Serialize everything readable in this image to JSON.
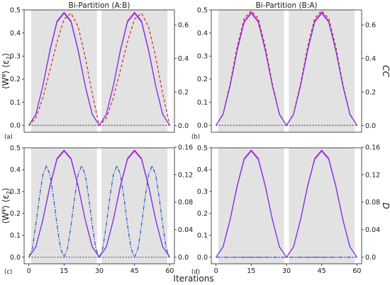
{
  "chart_data": {
    "type": "line",
    "xlabel": "Iterations",
    "colors": {
      "witness": "#cc33cc",
      "entanglement": "#7a33e8",
      "correlation": "#dd2222",
      "discord": "#2255cc",
      "baseline": "#111111",
      "shade": "#e2e2e2"
    },
    "panels": [
      {
        "id": "a",
        "letter": "(a)",
        "title": "Bi-Partition (A:B)",
        "ylabel_left": "⟨W^ψ⟩ ⟨ε₂⟩",
        "ylabel_right": "",
        "xlim": [
          -2,
          62
        ],
        "xticks": [],
        "ylim_left": [
          -0.03,
          0.5
        ],
        "yticks_left": [
          "0.0",
          "0.1",
          "0.2",
          "0.3",
          "0.4",
          "0.5"
        ],
        "ylim_right": [
          -0.04,
          0.69
        ],
        "yticks_right": [
          "0.0",
          "0.2",
          "0.4",
          "0.6"
        ],
        "shaded_regions": [
          [
            1,
            29
          ],
          [
            31,
            59
          ]
        ],
        "series": [
          {
            "role": "witness",
            "axis": "left",
            "dash": "",
            "x": [
              0,
              3,
              6,
              9,
              12,
              15,
              18,
              21,
              24,
              27,
              30,
              33,
              36,
              39,
              42,
              45,
              48,
              51,
              54,
              57,
              60
            ],
            "y": [
              0,
              0.048,
              0.173,
              0.327,
              0.452,
              0.49,
              0.452,
              0.327,
              0.173,
              0.048,
              0,
              0.048,
              0.173,
              0.327,
              0.452,
              0.49,
              0.452,
              0.327,
              0.173,
              0.048,
              0
            ]
          },
          {
            "role": "entanglement",
            "axis": "left",
            "dash": "",
            "x": [
              0,
              3,
              6,
              9,
              12,
              15,
              18,
              21,
              24,
              27,
              30,
              33,
              36,
              39,
              42,
              45,
              48,
              51,
              54,
              57,
              60
            ],
            "y": [
              0,
              0.047,
              0.171,
              0.323,
              0.447,
              0.485,
              0.447,
              0.323,
              0.171,
              0.047,
              0,
              0.047,
              0.171,
              0.323,
              0.447,
              0.485,
              0.447,
              0.323,
              0.171,
              0.047,
              0
            ]
          },
          {
            "role": "correlation",
            "axis": "right",
            "dash": "4,3",
            "x": [
              0,
              3,
              6,
              9,
              12,
              15,
              18,
              21,
              24,
              27,
              30,
              33,
              36,
              39,
              42,
              45,
              48,
              51,
              54,
              57,
              60
            ],
            "y": [
              0,
              0.044,
              0.165,
              0.33,
              0.498,
              0.635,
              0.67,
              0.59,
              0.41,
              0.19,
              0,
              0.044,
              0.165,
              0.33,
              0.498,
              0.635,
              0.67,
              0.59,
              0.41,
              0.19,
              0
            ]
          },
          {
            "role": "baseline",
            "axis": "left",
            "dash": "2,2",
            "x": [
              0,
              60
            ],
            "y": [
              0,
              0
            ]
          }
        ]
      },
      {
        "id": "b",
        "letter": "(b)",
        "title": "Bi-Partition (B:A)",
        "ylabel_left": "",
        "ylabel_right": "CC",
        "xlim": [
          -2,
          62
        ],
        "xticks": [],
        "ylim_left": [
          -0.03,
          0.5
        ],
        "yticks_left": [
          "0.0",
          "0.1",
          "0.2",
          "0.3",
          "0.4",
          "0.5"
        ],
        "ylim_right": [
          -0.04,
          0.69
        ],
        "yticks_right": [
          "0.0",
          "0.2",
          "0.4",
          "0.6"
        ],
        "shaded_regions": [
          [
            1,
            29
          ],
          [
            31,
            59
          ]
        ],
        "series": [
          {
            "role": "witness",
            "axis": "left",
            "dash": "",
            "x": [
              0,
              3,
              6,
              9,
              12,
              15,
              18,
              21,
              24,
              27,
              30,
              33,
              36,
              39,
              42,
              45,
              48,
              51,
              54,
              57,
              60
            ],
            "y": [
              0,
              0.048,
              0.173,
              0.327,
              0.452,
              0.49,
              0.452,
              0.327,
              0.173,
              0.048,
              0,
              0.048,
              0.173,
              0.327,
              0.452,
              0.49,
              0.452,
              0.327,
              0.173,
              0.048,
              0
            ]
          },
          {
            "role": "entanglement",
            "axis": "left",
            "dash": "",
            "x": [
              0,
              3,
              6,
              9,
              12,
              15,
              18,
              21,
              24,
              27,
              30,
              33,
              36,
              39,
              42,
              45,
              48,
              51,
              54,
              57,
              60
            ],
            "y": [
              0,
              0.047,
              0.171,
              0.323,
              0.447,
              0.485,
              0.447,
              0.323,
              0.171,
              0.047,
              0,
              0.047,
              0.171,
              0.323,
              0.447,
              0.485,
              0.447,
              0.323,
              0.171,
              0.047,
              0
            ]
          },
          {
            "role": "correlation",
            "axis": "right",
            "dash": "4,3",
            "x": [
              0,
              3,
              6,
              9,
              12,
              15,
              18,
              21,
              24,
              27,
              30,
              33,
              36,
              39,
              42,
              45,
              48,
              51,
              54,
              57,
              60
            ],
            "y": [
              0,
              0.07,
              0.25,
              0.47,
              0.64,
              0.685,
              0.64,
              0.47,
              0.25,
              0.07,
              0,
              0.07,
              0.25,
              0.47,
              0.64,
              0.685,
              0.64,
              0.47,
              0.25,
              0.07,
              0
            ]
          },
          {
            "role": "baseline",
            "axis": "left",
            "dash": "2,2",
            "x": [
              0,
              60
            ],
            "y": [
              0,
              0
            ]
          }
        ]
      },
      {
        "id": "c",
        "letter": "(c)",
        "title": "",
        "ylabel_left": "⟨W^ψ⟩ ⟨ε₂⟩",
        "ylabel_right": "",
        "xlim": [
          -2,
          62
        ],
        "xticks": [
          "0",
          "15",
          "30",
          "45",
          "60"
        ],
        "ylim_left": [
          -0.03,
          0.5
        ],
        "yticks_left": [
          "0.0",
          "0.1",
          "0.2",
          "0.3",
          "0.4",
          "0.5"
        ],
        "ylim_right": [
          -0.0095,
          0.159
        ],
        "yticks_right": [
          "0.0",
          "0.04",
          "0.08",
          "0.12",
          "0.16"
        ],
        "shaded_regions": [
          [
            1,
            29
          ],
          [
            31,
            59
          ]
        ],
        "series": [
          {
            "role": "witness",
            "axis": "left",
            "dash": "",
            "x": [
              0,
              3,
              6,
              9,
              12,
              15,
              18,
              21,
              24,
              27,
              30,
              33,
              36,
              39,
              42,
              45,
              48,
              51,
              54,
              57,
              60
            ],
            "y": [
              0,
              0.048,
              0.173,
              0.327,
              0.452,
              0.49,
              0.452,
              0.327,
              0.173,
              0.048,
              0,
              0.048,
              0.173,
              0.327,
              0.452,
              0.49,
              0.452,
              0.327,
              0.173,
              0.048,
              0
            ]
          },
          {
            "role": "entanglement",
            "axis": "left",
            "dash": "",
            "x": [
              0,
              3,
              6,
              9,
              12,
              15,
              18,
              21,
              24,
              27,
              30,
              33,
              36,
              39,
              42,
              45,
              48,
              51,
              54,
              57,
              60
            ],
            "y": [
              0,
              0.047,
              0.171,
              0.323,
              0.447,
              0.485,
              0.447,
              0.323,
              0.171,
              0.047,
              0,
              0.047,
              0.171,
              0.323,
              0.447,
              0.485,
              0.447,
              0.323,
              0.171,
              0.047,
              0
            ]
          },
          {
            "role": "discord",
            "axis": "right",
            "dash": "6,2,1.5,2",
            "x": [
              0,
              1.5,
              3,
              4.5,
              6,
              7.5,
              9,
              10.5,
              12,
              13.5,
              15,
              16.5,
              18,
              19.5,
              21,
              22.5,
              24,
              25.5,
              27,
              28.5,
              30,
              31.5,
              33,
              34.5,
              36,
              37.5,
              39,
              40.5,
              42,
              43.5,
              45,
              46.5,
              48,
              49.5,
              51,
              52.5,
              54,
              55.5,
              57,
              58.5,
              60
            ],
            "y": [
              0,
              0.013,
              0.047,
              0.087,
              0.12,
              0.133,
              0.12,
              0.087,
              0.047,
              0.013,
              0,
              0.013,
              0.047,
              0.087,
              0.12,
              0.133,
              0.12,
              0.087,
              0.047,
              0.013,
              0,
              0.013,
              0.047,
              0.087,
              0.12,
              0.133,
              0.12,
              0.087,
              0.047,
              0.013,
              0,
              0.013,
              0.047,
              0.087,
              0.12,
              0.133,
              0.12,
              0.087,
              0.047,
              0.013,
              0
            ]
          },
          {
            "role": "baseline",
            "axis": "left",
            "dash": "2,2",
            "x": [
              0,
              60
            ],
            "y": [
              0,
              0
            ]
          }
        ]
      },
      {
        "id": "d",
        "letter": "(d)",
        "title": "",
        "ylabel_left": "",
        "ylabel_right": "D",
        "xlim": [
          -2,
          62
        ],
        "xticks": [
          "0",
          "15",
          "30",
          "45",
          "60"
        ],
        "ylim_left": [
          -0.03,
          0.5
        ],
        "yticks_left": [
          "0.0",
          "0.1",
          "0.2",
          "0.3",
          "0.4",
          "0.5"
        ],
        "ylim_right": [
          -0.0095,
          0.159
        ],
        "yticks_right": [
          "0.0",
          "0.04",
          "0.08",
          "0.12",
          "0.16"
        ],
        "shaded_regions": [
          [
            1,
            29
          ],
          [
            31,
            59
          ]
        ],
        "series": [
          {
            "role": "witness",
            "axis": "left",
            "dash": "",
            "x": [
              0,
              3,
              6,
              9,
              12,
              15,
              18,
              21,
              24,
              27,
              30,
              33,
              36,
              39,
              42,
              45,
              48,
              51,
              54,
              57,
              60
            ],
            "y": [
              0,
              0.048,
              0.173,
              0.327,
              0.452,
              0.49,
              0.452,
              0.327,
              0.173,
              0.048,
              0,
              0.048,
              0.173,
              0.327,
              0.452,
              0.49,
              0.452,
              0.327,
              0.173,
              0.048,
              0
            ]
          },
          {
            "role": "entanglement",
            "axis": "left",
            "dash": "",
            "x": [
              0,
              3,
              6,
              9,
              12,
              15,
              18,
              21,
              24,
              27,
              30,
              33,
              36,
              39,
              42,
              45,
              48,
              51,
              54,
              57,
              60
            ],
            "y": [
              0,
              0.047,
              0.171,
              0.323,
              0.447,
              0.485,
              0.447,
              0.323,
              0.171,
              0.047,
              0,
              0.047,
              0.171,
              0.323,
              0.447,
              0.485,
              0.447,
              0.323,
              0.171,
              0.047,
              0
            ]
          },
          {
            "role": "discord",
            "axis": "right",
            "dash": "6,2,1.5,2",
            "x": [
              0,
              60
            ],
            "y": [
              0,
              0
            ]
          },
          {
            "role": "baseline",
            "axis": "left",
            "dash": "2,2",
            "x": [
              0,
              60
            ],
            "y": [
              0,
              0
            ]
          }
        ]
      }
    ]
  }
}
